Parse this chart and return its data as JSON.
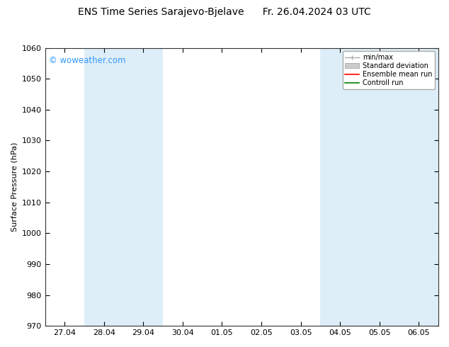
{
  "title": "ENS Time Series Sarajevo-Bjelave      Fr. 26.04.2024 03 UTC",
  "ylabel": "Surface Pressure (hPa)",
  "ylim": [
    970,
    1060
  ],
  "yticks": [
    970,
    980,
    990,
    1000,
    1010,
    1020,
    1030,
    1040,
    1050,
    1060
  ],
  "xtick_labels": [
    "27.04",
    "28.04",
    "29.04",
    "30.04",
    "01.05",
    "02.05",
    "03.05",
    "04.05",
    "05.05",
    "06.05"
  ],
  "n_xticks": 10,
  "bg_color": "#ffffff",
  "plot_bg_color": "#ffffff",
  "shaded_band_color": "#ddeef8",
  "shaded_col_indices": [
    1,
    2,
    7,
    8,
    9
  ],
  "watermark_text": "© woweather.com",
  "watermark_color": "#3399ff",
  "legend_entries": [
    {
      "label": "min/max",
      "color": "#aaaaaa",
      "style": "errorbar"
    },
    {
      "label": "Standard deviation",
      "color": "#cccccc",
      "style": "fill"
    },
    {
      "label": "Ensemble mean run",
      "color": "#ff0000",
      "style": "line"
    },
    {
      "label": "Controll run",
      "color": "#008000",
      "style": "line"
    }
  ],
  "title_fontsize": 10,
  "axis_fontsize": 8,
  "tick_fontsize": 8,
  "figure_width": 6.34,
  "figure_height": 4.9,
  "dpi": 100
}
